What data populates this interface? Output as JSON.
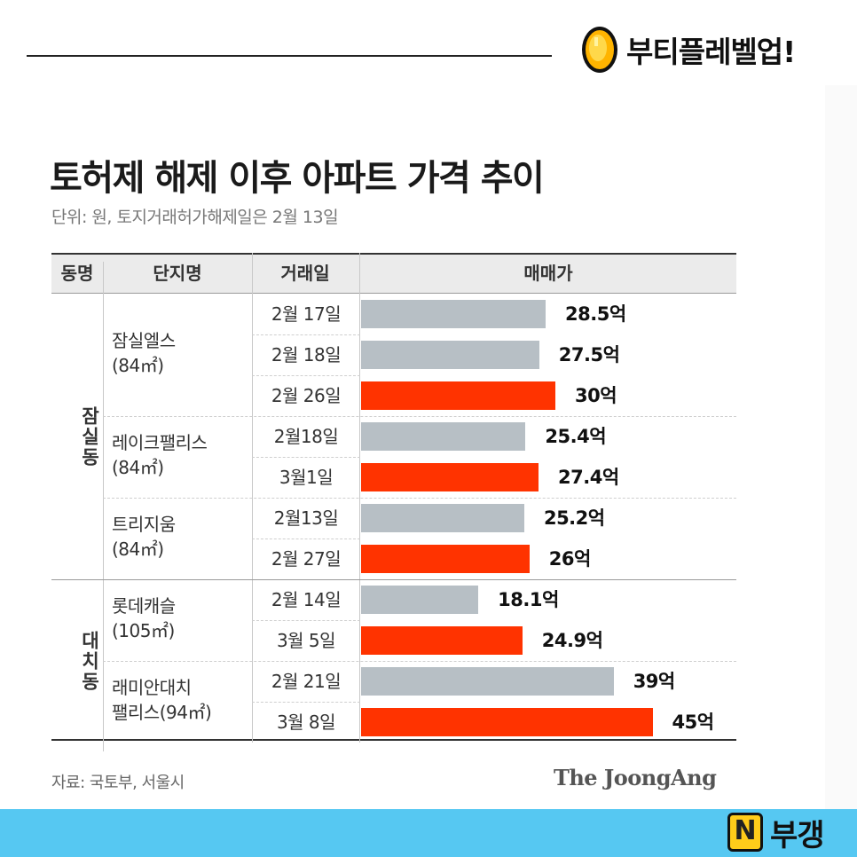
{
  "brand": {
    "name": "부티플레벨업!",
    "icon": "gold-coin-icon"
  },
  "chart": {
    "title": "토허제 해제 이후 아파트 가격 추이",
    "subtitle": "단위: 원, 토지거래허가해제일은 2월 13일",
    "headers": {
      "dong": "동명",
      "danji": "단지명",
      "date": "거래일",
      "price": "매매가"
    },
    "source": "자료: 국토부, 서울시",
    "credit": "The JoongAng"
  },
  "groups": [
    {
      "dong": "잠실동",
      "complexes": [
        0,
        1,
        2
      ]
    },
    {
      "dong": "대치동",
      "complexes": [
        3,
        4
      ]
    }
  ],
  "complexes": [
    {
      "name_line1": "잠실엘스",
      "name_line2": "(84㎡)"
    },
    {
      "name_line1": "레이크팰리스",
      "name_line2": "(84㎡)"
    },
    {
      "name_line1": "트리지움",
      "name_line2": "(84㎡)"
    },
    {
      "name_line1": "롯데캐슬",
      "name_line2": "(105㎡)"
    },
    {
      "name_line1": "래미안대치",
      "name_line2": "팰리스(94㎡)"
    }
  ],
  "colors": {
    "before": "#b7bfc5",
    "after": "#ff3300",
    "header_bg": "#ebebeb",
    "footer_band": "#56c8f2"
  },
  "chart_data": {
    "type": "bar",
    "orientation": "horizontal",
    "unit": "억",
    "rows": [
      {
        "complex": "잠실엘스",
        "date": "2월 17일",
        "value": 28.5,
        "label": "28.5억",
        "highlight": false
      },
      {
        "complex": "잠실엘스",
        "date": "2월 18일",
        "value": 27.5,
        "label": "27.5억",
        "highlight": false
      },
      {
        "complex": "잠실엘스",
        "date": "2월 26일",
        "value": 30,
        "label": "30억",
        "highlight": true
      },
      {
        "complex": "레이크팰리스",
        "date": "2월18일",
        "value": 25.4,
        "label": "25.4억",
        "highlight": false
      },
      {
        "complex": "레이크팰리스",
        "date": "3월1일",
        "value": 27.4,
        "label": "27.4억",
        "highlight": true
      },
      {
        "complex": "트리지움",
        "date": "2월13일",
        "value": 25.2,
        "label": "25.2억",
        "highlight": false
      },
      {
        "complex": "트리지움",
        "date": "2월 27일",
        "value": 26,
        "label": "26억",
        "highlight": true
      },
      {
        "complex": "롯데캐슬",
        "date": "2월 14일",
        "value": 18.1,
        "label": "18.1억",
        "highlight": false
      },
      {
        "complex": "롯데캐슬",
        "date": "3월 5일",
        "value": 24.9,
        "label": "24.9억",
        "highlight": true
      },
      {
        "complex": "래미안대치 팰리스",
        "date": "2월 21일",
        "value": 39,
        "label": "39억",
        "highlight": false
      },
      {
        "complex": "래미안대치 팰리스",
        "date": "3월 8일",
        "value": 45,
        "label": "45억",
        "highlight": true
      }
    ]
  },
  "footer": {
    "badge": "N",
    "brand": "부갱"
  }
}
